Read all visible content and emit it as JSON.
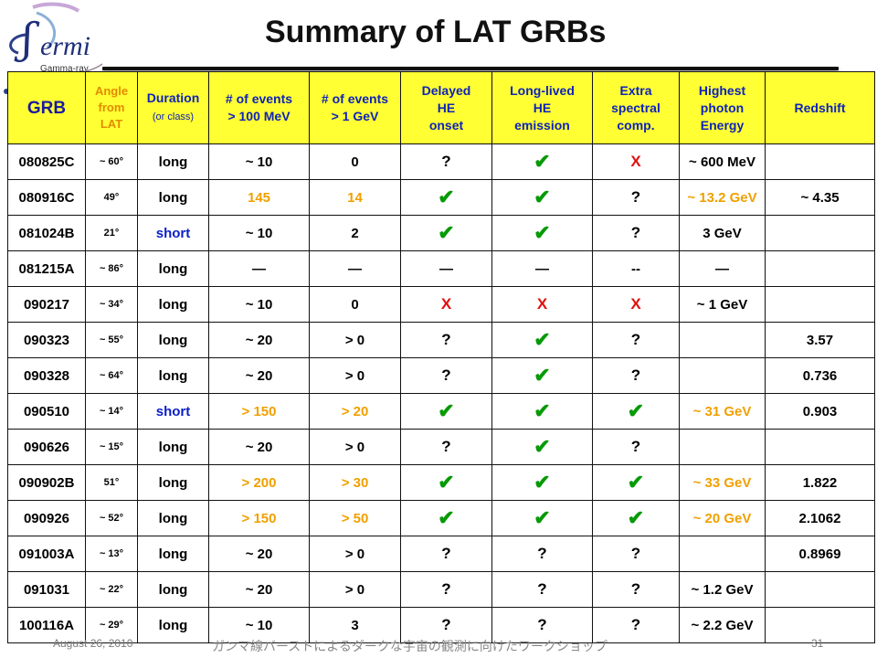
{
  "slide": {
    "title": "Summary of LAT GRBs",
    "logo_text": "ermi",
    "logo_sub": "Gamma-ray"
  },
  "table": {
    "headers": {
      "grb": "GRB",
      "angle_l1": "Angle",
      "angle_l2": "from",
      "angle_l3": "LAT",
      "duration": "Duration",
      "duration_sub": "(or class)",
      "events100_l1": "# of events",
      "events100_l2": "> 100 MeV",
      "events1g_l1": "# of events",
      "events1g_l2": "> 1 GeV",
      "delayed_l1": "Delayed",
      "delayed_l2": "HE",
      "delayed_l3": "onset",
      "longlived_l1": "Long-lived",
      "longlived_l2": "HE",
      "longlived_l3": "emission",
      "extra_l1": "Extra",
      "extra_l2": "spectral",
      "extra_l3": "comp.",
      "highest_l1": "Highest",
      "highest_l2": "photon",
      "highest_l3": "Energy",
      "redshift": "Redshift"
    },
    "rows": [
      {
        "grb": "080825C",
        "angle": "~ 60°",
        "duration": "long",
        "ev100": "~ 10",
        "ev1g": "0",
        "delayed": "?",
        "longlived": "✔",
        "extra": "X",
        "energy": "~ 600 MeV",
        "redshift": ""
      },
      {
        "grb": "080916C",
        "angle": "49°",
        "duration": "long",
        "ev100": "145",
        "ev1g": "14",
        "delayed": "✔",
        "longlived": "✔",
        "extra": "?",
        "energy": "~ 13.2 GeV",
        "redshift": "~ 4.35"
      },
      {
        "grb": "081024B",
        "angle": "21°",
        "duration": "short",
        "ev100": "~ 10",
        "ev1g": "2",
        "delayed": "✔",
        "longlived": "✔",
        "extra": "?",
        "energy": "3 GeV",
        "redshift": ""
      },
      {
        "grb": "081215A",
        "angle": "~ 86°",
        "duration": "long",
        "ev100": "—",
        "ev1g": "—",
        "delayed": "—",
        "longlived": "—",
        "extra": "--",
        "energy": "—",
        "redshift": ""
      },
      {
        "grb": "090217",
        "angle": "~ 34°",
        "duration": "long",
        "ev100": "~ 10",
        "ev1g": "0",
        "delayed": "X",
        "longlived": "X",
        "extra": "X",
        "energy": "~ 1 GeV",
        "redshift": ""
      },
      {
        "grb": "090323",
        "angle": "~ 55°",
        "duration": "long",
        "ev100": "~ 20",
        "ev1g": "> 0",
        "delayed": "?",
        "longlived": "✔",
        "extra": "?",
        "energy": "",
        "redshift": "3.57"
      },
      {
        "grb": "090328",
        "angle": "~ 64°",
        "duration": "long",
        "ev100": "~ 20",
        "ev1g": "> 0",
        "delayed": "?",
        "longlived": "✔",
        "extra": "?",
        "energy": "",
        "redshift": "0.736"
      },
      {
        "grb": "090510",
        "angle": "~ 14°",
        "duration": "short",
        "ev100": "> 150",
        "ev1g": "> 20",
        "delayed": "✔",
        "longlived": "✔",
        "extra": "✔",
        "energy": "~ 31 GeV",
        "redshift": "0.903"
      },
      {
        "grb": "090626",
        "angle": "~ 15°",
        "duration": "long",
        "ev100": "~ 20",
        "ev1g": "> 0",
        "delayed": "?",
        "longlived": "✔",
        "extra": "?",
        "energy": "",
        "redshift": ""
      },
      {
        "grb": "090902B",
        "angle": "51°",
        "duration": "long",
        "ev100": "> 200",
        "ev1g": "> 30",
        "delayed": "✔",
        "longlived": "✔",
        "extra": "✔",
        "energy": "~ 33 GeV",
        "redshift": "1.822"
      },
      {
        "grb": "090926",
        "angle": "~ 52°",
        "duration": "long",
        "ev100": "> 150",
        "ev1g": "> 50",
        "delayed": "✔",
        "longlived": "✔",
        "extra": "✔",
        "energy": "~ 20 GeV",
        "redshift": "2.1062"
      },
      {
        "grb": "091003A",
        "angle": "~ 13°",
        "duration": "long",
        "ev100": "~ 20",
        "ev1g": "> 0",
        "delayed": "?",
        "longlived": "?",
        "extra": "?",
        "energy": "",
        "redshift": "0.8969"
      },
      {
        "grb": "091031",
        "angle": "~ 22°",
        "duration": "long",
        "ev100": "~ 20",
        "ev1g": "> 0",
        "delayed": "?",
        "longlived": "?",
        "extra": "?",
        "energy": "~ 1.2 GeV",
        "redshift": ""
      },
      {
        "grb": "100116A",
        "angle": "~ 29°",
        "duration": "long",
        "ev100": "~ 10",
        "ev1g": "3",
        "delayed": "?",
        "longlived": "?",
        "extra": "?",
        "energy": "~ 2.2 GeV",
        "redshift": ""
      }
    ],
    "styles": {
      "ev_orange_rows": [
        1,
        7,
        9,
        10
      ],
      "energy_orange_rows": [
        1,
        7,
        9,
        10
      ],
      "short_duration_rows": [
        2,
        7
      ]
    }
  },
  "footer": {
    "date": "August 26, 2010",
    "workshop": "ガンマ線バーストによるダークな宇宙の観測に向けたワークショップ",
    "page": "31"
  },
  "colors": {
    "header_bg": "#ffff33",
    "grb_header": "#1a1aa0",
    "angle_header": "#e38b00",
    "check_green": "#079a07",
    "cross_red": "#e01010",
    "highlight_orange": "#f0a000",
    "short_blue": "#0a1ec8"
  }
}
